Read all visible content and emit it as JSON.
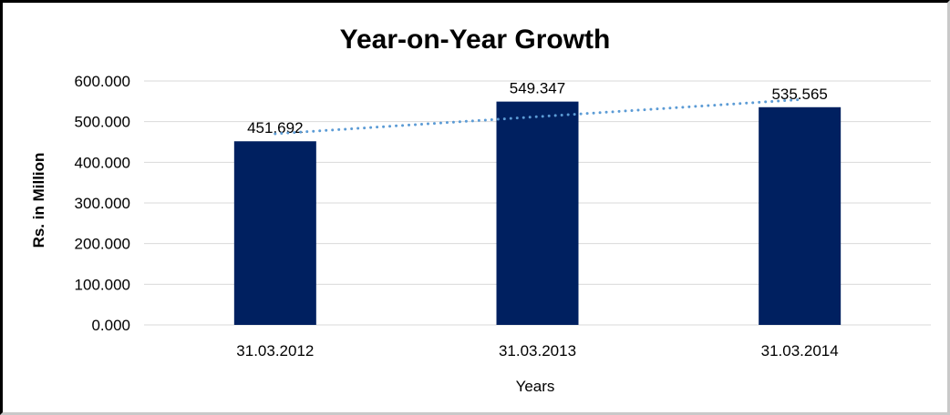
{
  "chart_data": {
    "type": "bar",
    "title": "Year-on-Year Growth",
    "xlabel": "Years",
    "ylabel": "Rs. in Million",
    "categories": [
      "31.03.2012",
      "31.03.2013",
      "31.03.2014"
    ],
    "values": [
      451.692,
      549.347,
      535.565
    ],
    "data_labels": [
      "451.692",
      "549.347",
      "535.565"
    ],
    "ylim": [
      0,
      600
    ],
    "ytick_values": [
      0,
      100,
      200,
      300,
      400,
      500,
      600
    ],
    "ytick_labels": [
      "0.000",
      "100.000",
      "200.000",
      "300.000",
      "400.000",
      "500.000",
      "600.000"
    ],
    "grid": "horizontal",
    "legend": "none",
    "trendline": {
      "type": "linear",
      "style": "dotted"
    },
    "colors": {
      "bar": "#002060",
      "trendline": "#5B9BD5",
      "gridline": "#D9D9D9",
      "text": "#000000"
    }
  }
}
